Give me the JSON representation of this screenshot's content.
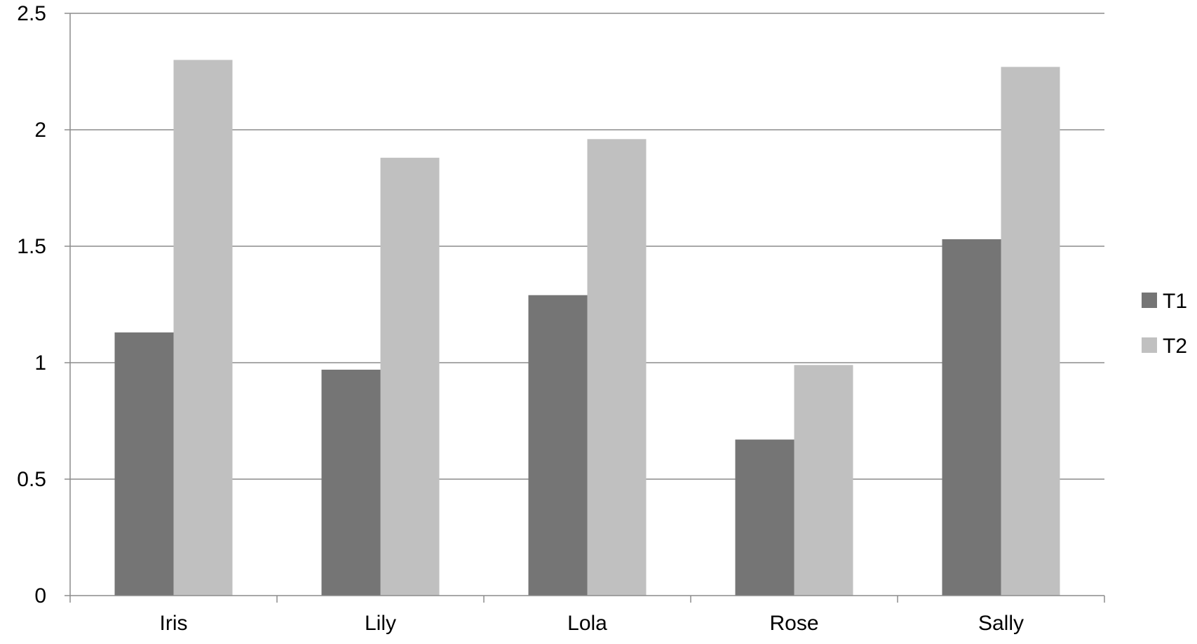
{
  "chart_data": {
    "type": "bar",
    "categories": [
      "Iris",
      "Lily",
      "Lola",
      "Rose",
      "Sally"
    ],
    "series": [
      {
        "name": "T1",
        "values": [
          1.13,
          0.97,
          1.29,
          0.67,
          1.53
        ],
        "color": "#757575"
      },
      {
        "name": "T2",
        "values": [
          2.3,
          1.88,
          1.96,
          0.99,
          2.27
        ],
        "color": "#c0c0c0"
      }
    ],
    "yticks": [
      "0",
      "0.5",
      "1",
      "1.5",
      "2",
      "2.5"
    ],
    "ylim": [
      0,
      2.5
    ],
    "grid": true,
    "legend_position": "right"
  }
}
